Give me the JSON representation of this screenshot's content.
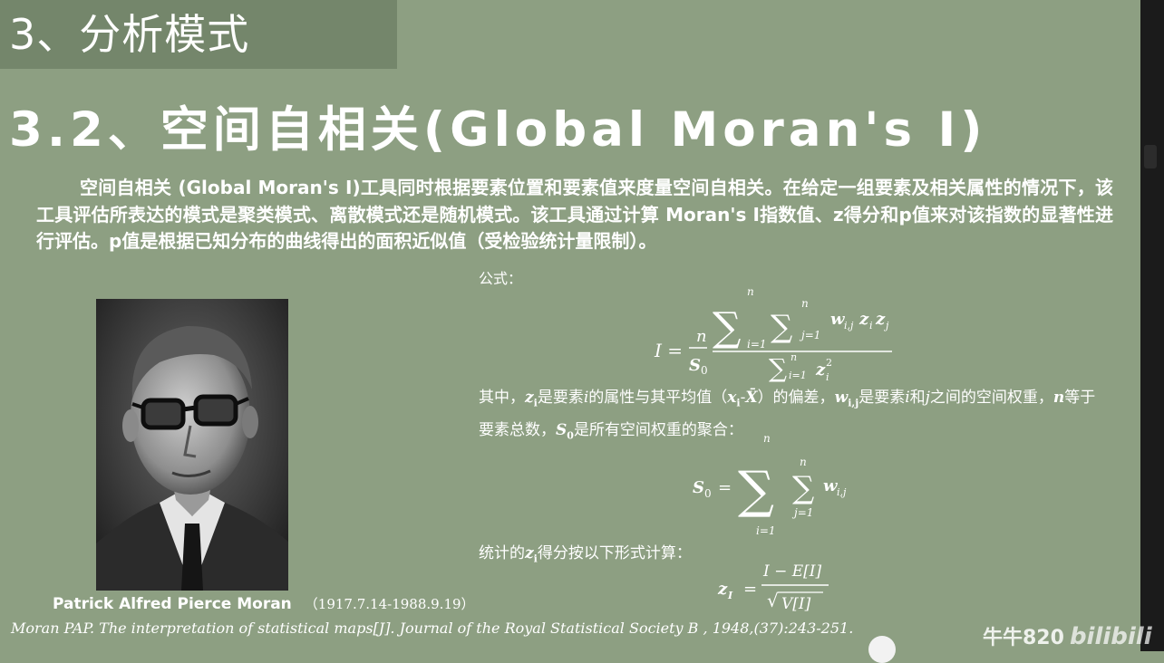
{
  "slide": {
    "section_title": "3、分析模式",
    "heading": "3.2、空间自相关(Global Moran's I)",
    "paragraph": "空间自相关 (Global Moran's I)工具同时根据要素位置和要素值来度量空间自相关。在给定一组要素及相关属性的情况下，该工具评估所表达的模式是聚类模式、离散模式还是随机模式。该工具通过计算 Moran's I指数值、z得分和p值来对该指数的显著性进行评估。p值是根据已知分布的曲线得出的面积近似值（受检验统计量限制）。",
    "formula_label": "公式：",
    "desc_parts": [
      "其中，",
      "z",
      "i",
      "是要素",
      "i",
      "的属性与其平均值（",
      "x",
      "i",
      "-",
      "X̄",
      "）的偏差，",
      "w",
      "i,j",
      "是要素",
      "i",
      "和",
      "j",
      "之间的空间权重，",
      "n",
      "等于要素总数，",
      "S",
      "0",
      "是所有空间权重的聚合："
    ],
    "zscore_parts": [
      "统计的",
      "z",
      "i",
      "得分按以下形式计算："
    ],
    "portrait_caption_name": "Patrick Alfred Pierce Moran",
    "portrait_caption_dates": "（1917.7.14-1988.9.19）",
    "reference": "Moran PAP. The interpretation of statistical maps[J]. Journal of the Royal Statistical Society B , 1948,(37):243-251.",
    "watermark": "牛牛820",
    "watermark_site": "bilibili"
  },
  "formulas": {
    "moran": {
      "lhs": "I =",
      "frac_num": "n",
      "frac_den": "S",
      "frac_den_sub": "0",
      "sum": "∑",
      "sum_sup": "n",
      "sum_sub_i": "i=1",
      "sum_sub_j": "j=1",
      "w": "w",
      "w_sub": "i,j",
      "z": "z",
      "zi_sub": "i",
      "zj_sub": "j",
      "den_sup": "2"
    },
    "s0": {
      "lhs": "S",
      "lhs_sub": "0",
      "eq": "=",
      "sum": "∑",
      "sup": "n",
      "sub_i": "i=1",
      "sub_j": "j=1",
      "w": "w",
      "w_sub": "i,j"
    },
    "z": {
      "lhs": "z",
      "lhs_sub": "I",
      "eq": "=",
      "num": "I − E[I]",
      "den": "V[I]",
      "sqrt": "√"
    }
  },
  "colors": {
    "background": "#8d9f82",
    "title_bar": "#74866b",
    "text": "#ffffff"
  }
}
